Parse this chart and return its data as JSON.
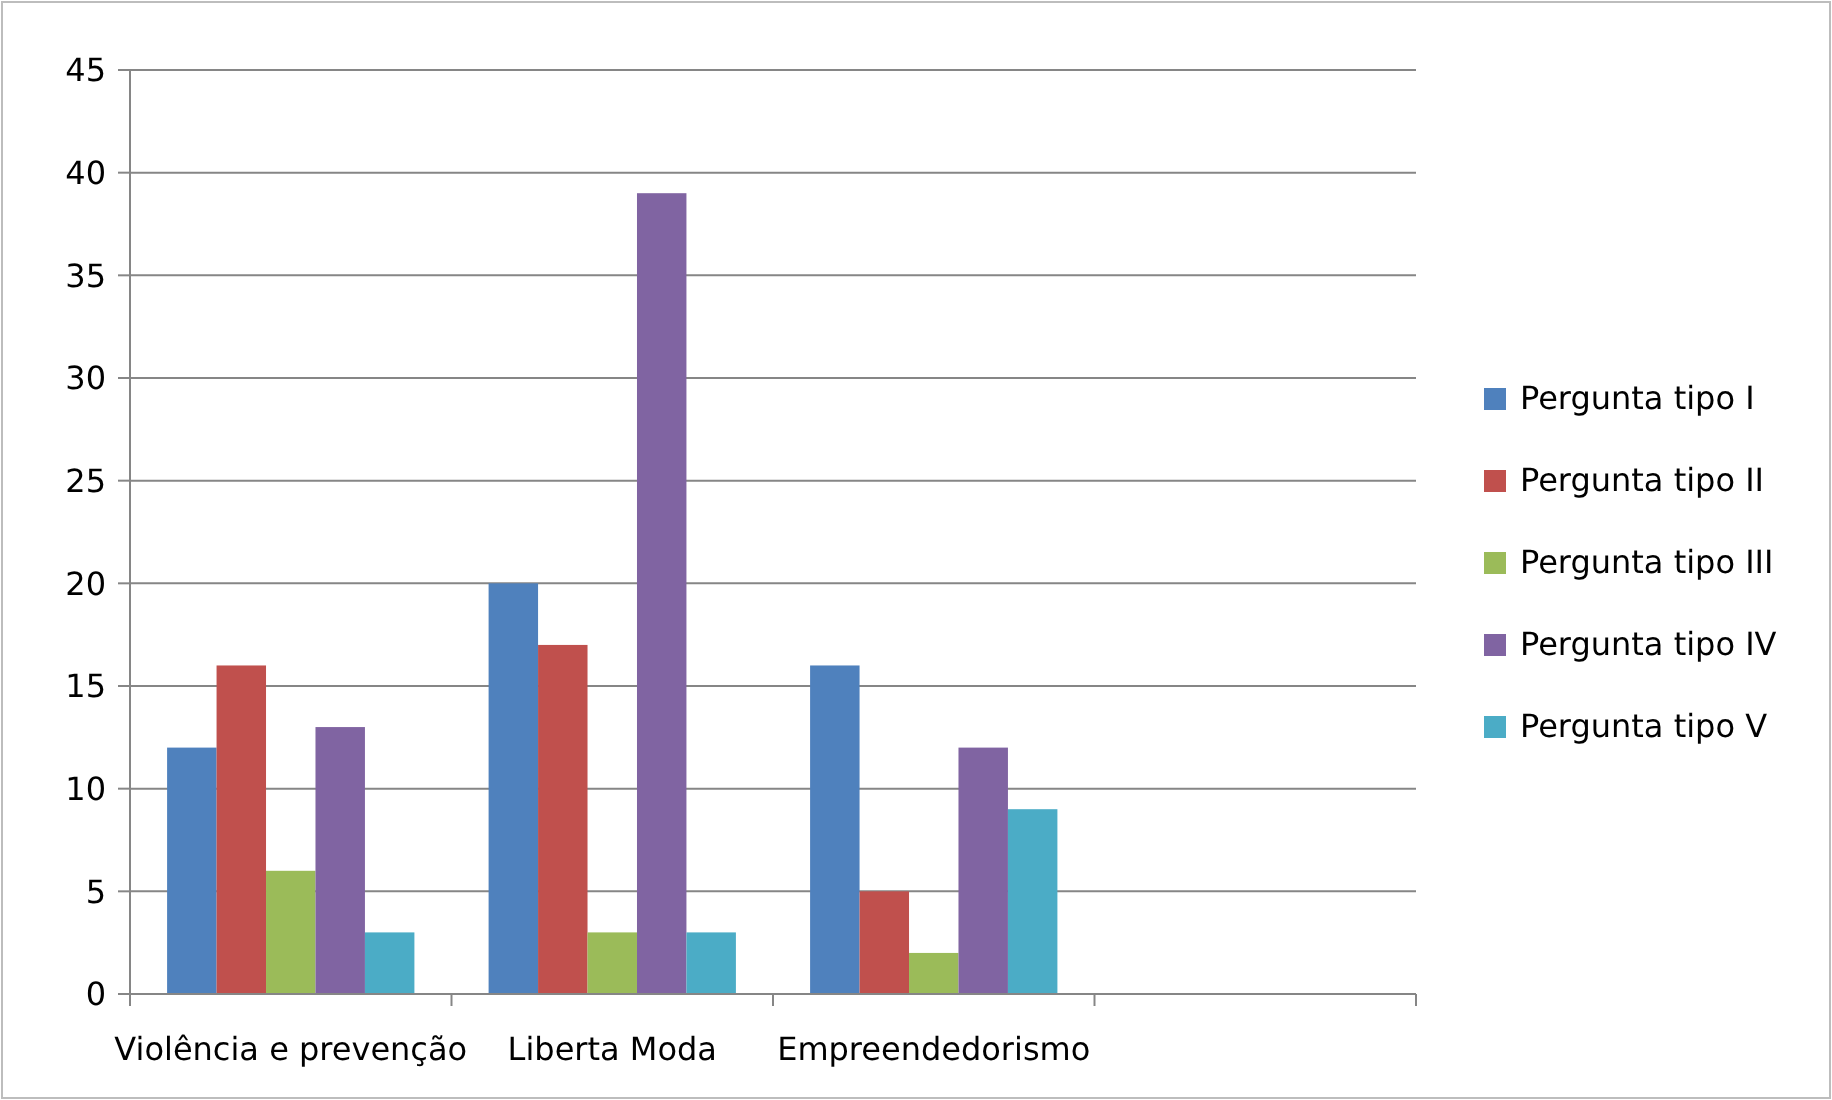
{
  "chart_data": {
    "type": "bar",
    "categories": [
      "Violência e prevenção",
      "Liberta Moda",
      "Empreendedorismo",
      null
    ],
    "series": [
      {
        "name": "Pergunta tipo I",
        "color": "#4f81bd",
        "values": [
          12,
          20,
          16,
          null
        ]
      },
      {
        "name": "Pergunta tipo II",
        "color": "#c0504d",
        "values": [
          16,
          17,
          5,
          null
        ]
      },
      {
        "name": "Pergunta tipo III",
        "color": "#9bbb59",
        "values": [
          6,
          3,
          2,
          null
        ]
      },
      {
        "name": "Pergunta tipo IV",
        "color": "#8064a2",
        "values": [
          13,
          39,
          12,
          null
        ]
      },
      {
        "name": "Pergunta tipo V",
        "color": "#4bacc6",
        "values": [
          3,
          3,
          9,
          null
        ]
      }
    ],
    "ylim": [
      0,
      45
    ],
    "yticks": [
      0,
      5,
      10,
      15,
      20,
      25,
      30,
      35,
      40,
      45
    ],
    "grid": "y",
    "legend": "right"
  }
}
